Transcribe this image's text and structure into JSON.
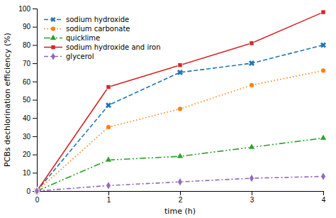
{
  "chart_data": {
    "type": "line",
    "xlabel": "time (h)",
    "ylabel": "PCBs dechlorination efficiency (%)",
    "x": [
      0,
      1,
      2,
      3,
      4
    ],
    "xlim": [
      0,
      4
    ],
    "ylim": [
      0,
      100
    ],
    "xticks": [
      0,
      1,
      2,
      3,
      4
    ],
    "yticks": [
      0,
      10,
      20,
      30,
      40,
      50,
      60,
      70,
      80,
      90,
      100
    ],
    "grid": false,
    "legend": "top-left",
    "series": [
      {
        "name": "sodium hydroxide",
        "values": [
          0,
          47,
          65,
          70,
          80
        ],
        "marker": "x",
        "line_style": "dashed"
      },
      {
        "name": "sodium carbonate",
        "values": [
          0,
          35,
          45,
          58,
          66
        ],
        "marker": "circle",
        "line_style": "dotted"
      },
      {
        "name": "quicklime",
        "values": [
          0,
          17,
          19,
          24,
          29
        ],
        "marker": "triangle",
        "line_style": "dash-dot-dot"
      },
      {
        "name": "sodium hydroxide and iron",
        "values": [
          0,
          57,
          69,
          81,
          98
        ],
        "marker": "square",
        "line_style": "solid"
      },
      {
        "name": "glycerol",
        "values": [
          0,
          3,
          5,
          7,
          8
        ],
        "marker": "diamond",
        "line_style": "dash-dot"
      }
    ]
  }
}
